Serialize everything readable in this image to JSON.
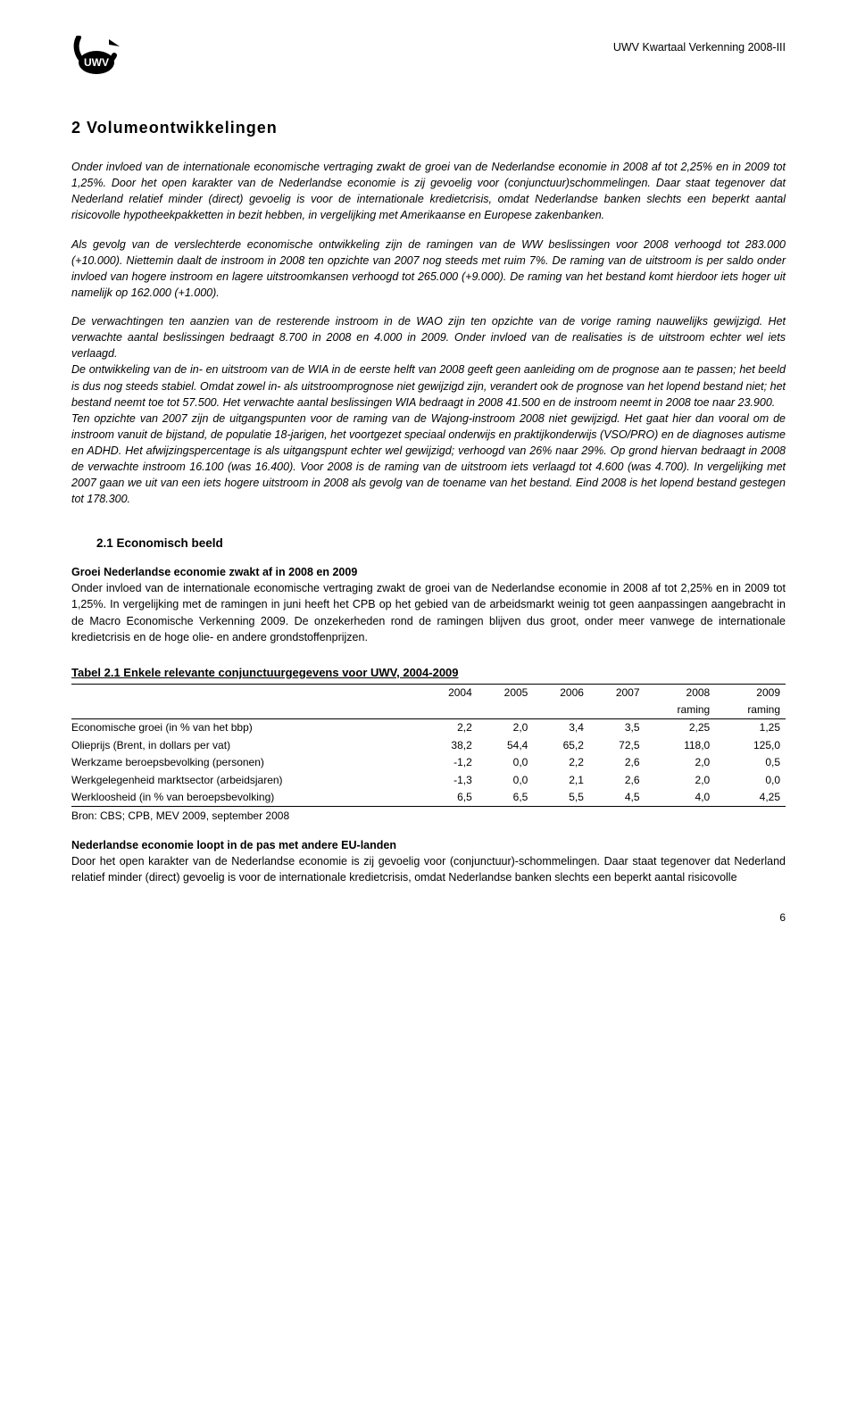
{
  "header": {
    "doc_title": "UWV Kwartaal Verkenning 2008-III",
    "logo_alt": "UWV"
  },
  "section": {
    "title": "2  Volumeontwikkelingen",
    "p1": "Onder invloed van de internationale economische vertraging zwakt de groei van de Nederlandse economie in 2008 af tot 2,25% en in 2009 tot 1,25%. Door het open karakter van de Nederlandse economie is zij gevoelig voor (conjunctuur)schommelingen. Daar staat tegenover dat Nederland relatief minder (direct) gevoelig is voor de internationale kredietcrisis, omdat Nederlandse banken slechts een beperkt aantal risicovolle hypotheekpakketten in bezit hebben, in vergelijking met Amerikaanse en Europese zakenbanken.",
    "p2": "Als gevolg van de verslechterde economische ontwikkeling zijn de ramingen van de WW beslissingen voor 2008 verhoogd tot 283.000 (+10.000). Niettemin daalt de instroom in 2008 ten opzichte van 2007 nog steeds met ruim 7%. De raming van de uitstroom is per saldo onder invloed van hogere instroom en lagere uitstroomkansen verhoogd tot 265.000 (+9.000). De raming van het bestand komt hierdoor iets hoger uit namelijk op 162.000 (+1.000).",
    "p3": "De verwachtingen ten aanzien van de resterende instroom in de WAO zijn ten opzichte van de vorige raming nauwelijks gewijzigd. Het verwachte aantal beslissingen bedraagt 8.700 in 2008 en 4.000 in 2009. Onder invloed van de realisaties is de uitstroom echter wel iets verlaagd.",
    "p4": "De ontwikkeling van de in- en uitstroom van de WIA in de eerste helft van 2008 geeft geen aanleiding om de prognose aan te passen; het beeld is dus nog steeds stabiel. Omdat zowel in- als uitstroomprognose niet gewijzigd zijn, verandert ook de prognose van het lopend bestand niet; het bestand neemt toe tot 57.500. Het verwachte aantal beslissingen WIA bedraagt in 2008 41.500 en de instroom neemt in 2008 toe naar 23.900.",
    "p5": "Ten opzichte van 2007 zijn de uitgangspunten voor de raming van de Wajong-instroom 2008 niet gewijzigd. Het gaat hier dan vooral om de instroom vanuit de bijstand, de populatie 18-jarigen, het voortgezet speciaal onderwijs en praktijkonderwijs (VSO/PRO) en de diagnoses autisme en ADHD. Het afwijzingspercentage is als uitgangspunt echter wel gewijzigd; verhoogd van 26% naar 29%. Op grond hiervan bedraagt in 2008 de verwachte instroom 16.100 (was 16.400). Voor 2008 is de raming van de uitstroom iets verlaagd tot 4.600 (was 4.700). In vergelijking met 2007 gaan we uit van een iets hogere uitstroom in 2008 als gevolg van de toename van het bestand. Eind 2008 is het lopend bestand gestegen tot 178.300."
  },
  "subsection": {
    "heading": "2.1    Economisch beeld",
    "sub_bold": "Groei Nederlandse economie zwakt af in 2008 en 2009",
    "sub_p1": "Onder invloed van de internationale economische vertraging zwakt de groei van de Nederlandse economie in 2008 af tot 2,25% en in 2009 tot 1,25%. In vergelijking met de ramingen in juni heeft het CPB op het gebied van de arbeidsmarkt weinig tot geen aanpassingen aangebracht in de Macro Economische Verkenning 2009. De onzekerheden rond de ramingen blijven dus groot, onder meer vanwege de internationale  kredietcrisis en de hoge olie- en andere grondstoffenprijzen."
  },
  "table": {
    "caption": "Tabel 2.1 Enkele relevante conjunctuurgegevens voor UWV, 2004-2009",
    "header_years": [
      "2004",
      "2005",
      "2006",
      "2007",
      "2008",
      "2009"
    ],
    "header_sub": [
      "",
      "",
      "",
      "",
      "raming",
      "raming"
    ],
    "rows": [
      {
        "label": "Economische groei (in % van het bbp)",
        "vals": [
          "2,2",
          "2,0",
          "3,4",
          "3,5",
          "2,25",
          "1,25"
        ]
      },
      {
        "label": "Olieprijs (Brent, in dollars per vat)",
        "vals": [
          "38,2",
          "54,4",
          "65,2",
          "72,5",
          "118,0",
          "125,0"
        ]
      },
      {
        "label": "Werkzame beroepsbevolking (personen)",
        "vals": [
          "-1,2",
          "0,0",
          "2,2",
          "2,6",
          "2,0",
          "0,5"
        ]
      },
      {
        "label": "Werkgelegenheid marktsector (arbeidsjaren)",
        "vals": [
          "-1,3",
          "0,0",
          "2,1",
          "2,6",
          "2,0",
          "0,0"
        ]
      },
      {
        "label": "Werkloosheid (in % van beroepsbevolking)",
        "vals": [
          "6,5",
          "6,5",
          "5,5",
          "4,5",
          "4,0",
          "4,25"
        ]
      }
    ],
    "source": "Bron: CBS; CPB, MEV 2009, september 2008"
  },
  "closing": {
    "bold": "Nederlandse economie loopt in de pas met andere EU-landen",
    "p": "Door het open karakter van de Nederlandse economie is zij gevoelig voor (conjunctuur)-schommelingen. Daar staat tegenover dat Nederland relatief minder (direct) gevoelig is voor de internationale kredietcrisis, omdat Nederlandse banken slechts een beperkt aantal risicovolle"
  },
  "page_number": "6"
}
